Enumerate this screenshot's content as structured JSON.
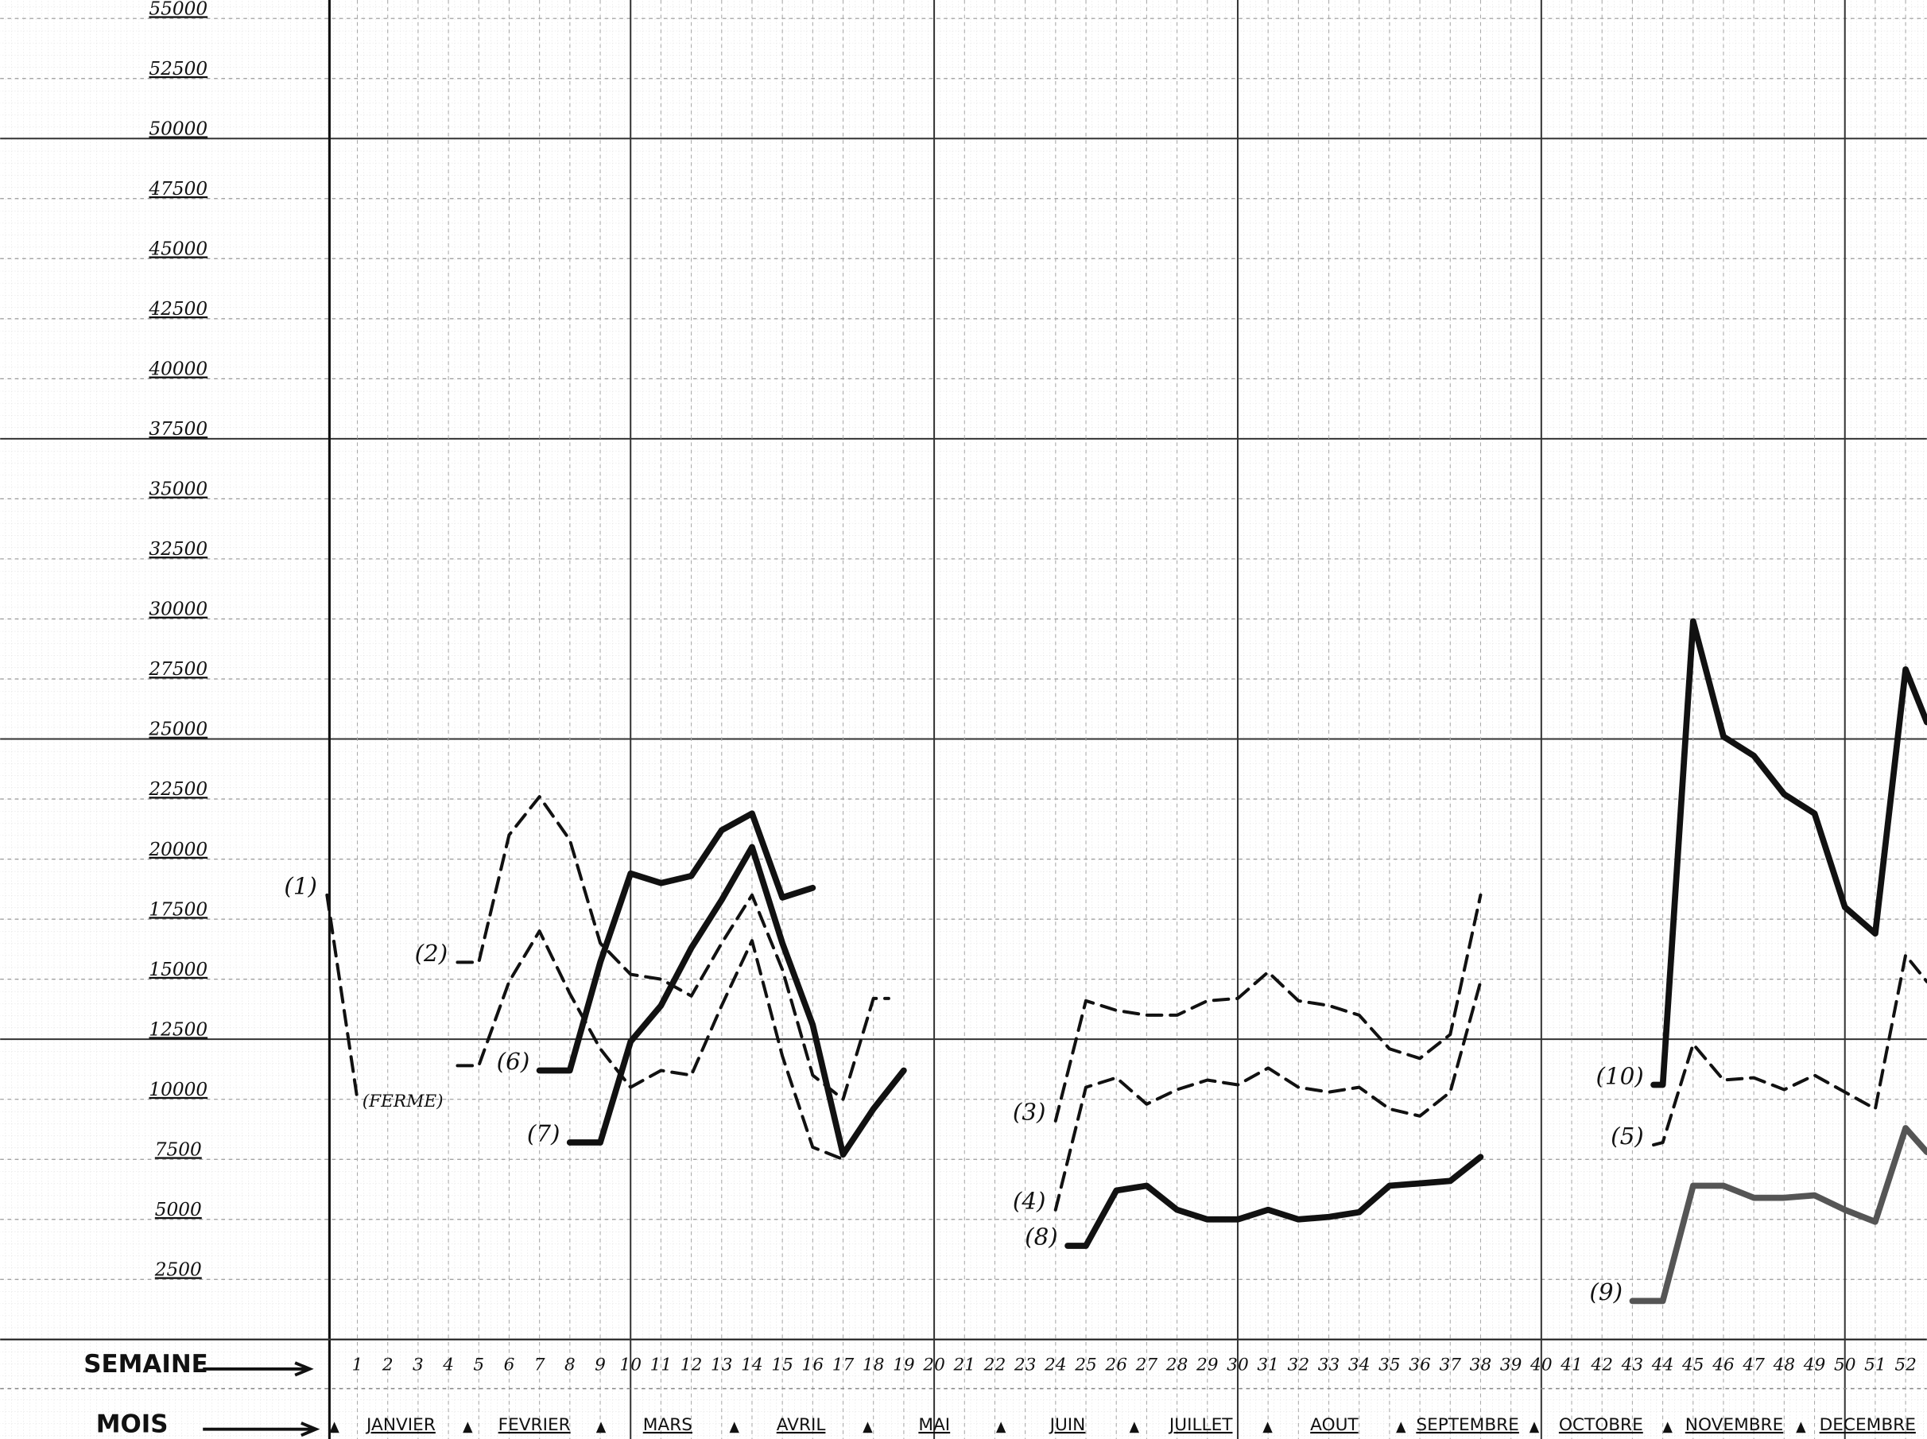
{
  "chart_data": {
    "type": "line",
    "ylim": [
      0,
      55000
    ],
    "yticks": [
      2500,
      5000,
      7500,
      10000,
      12500,
      15000,
      17500,
      20000,
      22500,
      25000,
      27500,
      30000,
      32500,
      35000,
      37500,
      40000,
      42500,
      45000,
      47500,
      50000,
      52500,
      55000
    ],
    "xlim": [
      0,
      52.7
    ],
    "xticks": [
      1,
      2,
      3,
      4,
      5,
      6,
      7,
      8,
      9,
      10,
      11,
      12,
      13,
      14,
      15,
      16,
      17,
      18,
      19,
      20,
      21,
      22,
      23,
      24,
      25,
      26,
      27,
      28,
      29,
      30,
      31,
      32,
      33,
      34,
      35,
      36,
      37,
      38,
      39,
      40,
      41,
      42,
      43,
      44,
      45,
      46,
      47,
      48,
      49,
      50,
      51,
      52
    ],
    "x_label": "SEMAINE",
    "month_label": "MOIS",
    "months": [
      "JANVIER",
      "FEVRIER",
      "MARS",
      "AVRIL",
      "MAI",
      "JUIN",
      "JUILLET",
      "AOUT",
      "SEPTEMBRE",
      "OCTOBRE",
      "NOVEMBRE",
      "DECEMBRE"
    ],
    "annotation": "(FERME)",
    "grid": true,
    "series": [
      {
        "name": "(1)",
        "style": "dashed",
        "color": "#111",
        "x": [
          0,
          1
        ],
        "values": [
          18500,
          10000
        ]
      },
      {
        "name": "(2)",
        "style": "dashed",
        "color": "#111",
        "x": [
          4.3,
          5,
          6,
          7,
          8,
          9,
          10,
          11,
          12,
          13,
          14,
          15,
          16,
          17,
          18,
          18.5
        ],
        "values": [
          15700,
          15700,
          21000,
          22600,
          20800,
          16500,
          15200,
          15000,
          14300,
          16500,
          18500,
          15400,
          11000,
          10000,
          14200,
          14200
        ]
      },
      {
        "style": "dashed",
        "color": "#111",
        "x": [
          4.3,
          5,
          6,
          7,
          8,
          9,
          10,
          11,
          12,
          13,
          14,
          15,
          16,
          17
        ],
        "values": [
          11400,
          11400,
          14900,
          17000,
          14400,
          12100,
          10500,
          11200,
          11000,
          13900,
          16600,
          11800,
          8000,
          7500
        ]
      },
      {
        "name": "(6)",
        "style": "solid",
        "color": "#111",
        "x": [
          7,
          8,
          9,
          10,
          11,
          12,
          13,
          14,
          15,
          16
        ],
        "values": [
          11200,
          11200,
          15700,
          19400,
          19000,
          19300,
          21200,
          21900,
          18400,
          18800
        ]
      },
      {
        "name": "(7)",
        "style": "solid",
        "color": "#111",
        "x": [
          8,
          9,
          10,
          11,
          12,
          13,
          14,
          15,
          16,
          17,
          18,
          19
        ],
        "values": [
          8200,
          8200,
          12400,
          13900,
          16300,
          18300,
          20500,
          16500,
          13100,
          7700,
          9600,
          11200
        ]
      },
      {
        "name": "(3)",
        "style": "dashed",
        "color": "#111",
        "x": [
          24,
          25,
          26,
          27,
          28,
          29,
          30,
          31,
          32,
          33,
          34,
          35,
          36,
          37,
          38
        ],
        "values": [
          9100,
          14100,
          13700,
          13500,
          13500,
          14100,
          14200,
          15300,
          14100,
          13900,
          13500,
          12100,
          11700,
          12700,
          18500
        ]
      },
      {
        "name": "(4)",
        "style": "dashed",
        "color": "#111",
        "x": [
          24,
          25,
          26,
          27,
          28,
          29,
          30,
          31,
          32,
          33,
          34,
          35,
          36,
          37,
          38
        ],
        "values": [
          5400,
          10500,
          10900,
          9800,
          10400,
          10800,
          10600,
          11300,
          10500,
          10300,
          10500,
          9600,
          9300,
          10300,
          14900
        ]
      },
      {
        "name": "(8)",
        "style": "solid",
        "color": "#111",
        "x": [
          24.4,
          25,
          26,
          27,
          28,
          29,
          30,
          31,
          32,
          33,
          34,
          35,
          36,
          37,
          38
        ],
        "values": [
          3900,
          3900,
          6200,
          6400,
          5400,
          5000,
          5000,
          5400,
          5000,
          5100,
          5300,
          6400,
          6500,
          6600,
          7600
        ]
      },
      {
        "name": "(10)",
        "style": "solid",
        "color": "#111",
        "x": [
          43.7,
          44,
          45,
          46,
          47,
          48,
          49,
          50,
          51,
          52,
          52.7
        ],
        "values": [
          10600,
          10600,
          29900,
          25100,
          24300,
          22700,
          21900,
          18000,
          16900,
          27900,
          25700
        ]
      },
      {
        "name": "(5)",
        "style": "dashed",
        "color": "#111",
        "x": [
          43.7,
          44,
          45,
          46,
          47,
          48,
          49,
          50,
          51,
          52,
          52.7
        ],
        "values": [
          8100,
          8200,
          12300,
          10800,
          10900,
          10400,
          11000,
          10300,
          9600,
          16000,
          14900
        ]
      },
      {
        "name": "(9)",
        "style": "solid",
        "color": "#555",
        "x": [
          43,
          44,
          45,
          46,
          47,
          48,
          49,
          50,
          51,
          52,
          52.7
        ],
        "values": [
          1600,
          1600,
          6400,
          6400,
          5900,
          5900,
          6000,
          5400,
          4900,
          8800,
          7800
        ]
      }
    ]
  }
}
